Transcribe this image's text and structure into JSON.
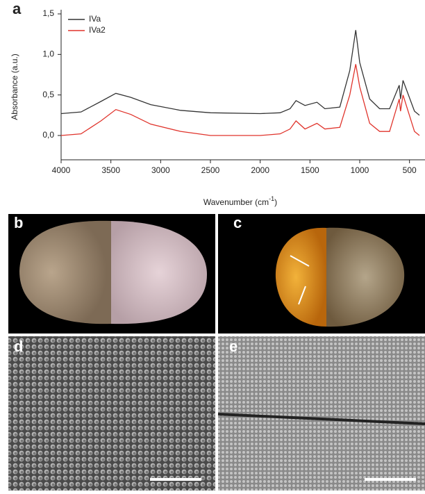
{
  "chart_data": {
    "type": "line",
    "panel_label": "a",
    "x": [
      4000,
      3800,
      3600,
      3450,
      3300,
      3100,
      2800,
      2500,
      2000,
      1800,
      1700,
      1640,
      1550,
      1430,
      1350,
      1200,
      1100,
      1040,
      1000,
      900,
      800,
      700,
      603,
      590,
      565,
      450,
      400
    ],
    "series": [
      {
        "name": "IVa",
        "color": "#333333",
        "values": [
          0.27,
          0.29,
          0.42,
          0.52,
          0.47,
          0.38,
          0.31,
          0.28,
          0.27,
          0.28,
          0.33,
          0.43,
          0.37,
          0.41,
          0.33,
          0.35,
          0.8,
          1.3,
          0.9,
          0.45,
          0.33,
          0.33,
          0.62,
          0.45,
          0.68,
          0.3,
          0.25
        ]
      },
      {
        "name": "IVa2",
        "color": "#e0332b",
        "values": [
          0.0,
          0.02,
          0.18,
          0.32,
          0.26,
          0.14,
          0.05,
          0.0,
          0.0,
          0.02,
          0.08,
          0.18,
          0.08,
          0.15,
          0.08,
          0.1,
          0.5,
          0.88,
          0.6,
          0.15,
          0.05,
          0.05,
          0.45,
          0.3,
          0.5,
          0.05,
          0.0
        ]
      }
    ],
    "xlim": [
      4000,
      400
    ],
    "xticks": [
      4000,
      3500,
      3000,
      2500,
      2000,
      1500,
      1000,
      500
    ],
    "ylim": [
      -0.3,
      1.5
    ],
    "yticks": [
      {
        "value": 0,
        "label": "0,0"
      },
      {
        "value": 0.5,
        "label": "0,5"
      },
      {
        "value": 1,
        "label": "1,0"
      },
      {
        "value": 1.5,
        "label": "1,5"
      }
    ],
    "y_label": "Absorbance (a.u.)",
    "x_label": {
      "text": "Wavenumber (cm",
      "sup": "-1",
      "end": ")"
    },
    "legend": "top-left"
  },
  "panels": [
    {
      "label": "b"
    },
    {
      "label": "c"
    },
    {
      "label": "d"
    },
    {
      "label": "e"
    }
  ]
}
